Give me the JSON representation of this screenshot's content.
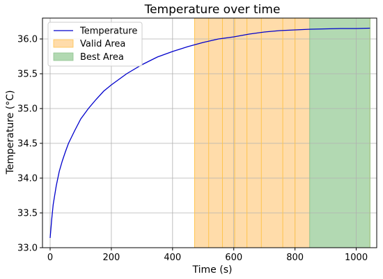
{
  "chart_data": {
    "type": "line",
    "title": "Temperature over time",
    "xlabel": "Time (s)",
    "ylabel": "Temperature (°C)",
    "xlim": [
      -25,
      1067
    ],
    "ylim": [
      33.0,
      36.3
    ],
    "xticks": [
      0,
      200,
      400,
      600,
      800,
      1000
    ],
    "yticks": [
      33.0,
      33.5,
      34.0,
      34.5,
      35.0,
      35.5,
      36.0
    ],
    "grid": true,
    "legend_position": "top-left",
    "series": [
      {
        "name": "Temperature",
        "color": "#0000cc",
        "x": [
          0,
          5,
          10,
          20,
          30,
          40,
          50,
          60,
          80,
          100,
          125,
          150,
          175,
          200,
          250,
          300,
          350,
          400,
          450,
          500,
          550,
          600,
          650,
          700,
          750,
          800,
          850,
          900,
          950,
          1000,
          1045
        ],
        "y": [
          33.14,
          33.4,
          33.62,
          33.89,
          34.1,
          34.25,
          34.38,
          34.5,
          34.68,
          34.85,
          35.0,
          35.13,
          35.25,
          35.34,
          35.5,
          35.63,
          35.74,
          35.82,
          35.89,
          35.95,
          36.0,
          36.03,
          36.07,
          36.1,
          36.12,
          36.13,
          36.14,
          36.145,
          36.15,
          36.15,
          36.155
        ]
      }
    ],
    "areas": [
      {
        "name": "Valid Area",
        "x_start": 472,
        "x_end": 1045,
        "color": "#ffdcaa"
      },
      {
        "name": "Best Area",
        "x_start": 848,
        "x_end": 1045,
        "color": "#b2d9b2"
      }
    ],
    "vertical_lines": {
      "color": "#ffc44d",
      "x": [
        518,
        563,
        603,
        643,
        690,
        760,
        800
      ]
    }
  }
}
